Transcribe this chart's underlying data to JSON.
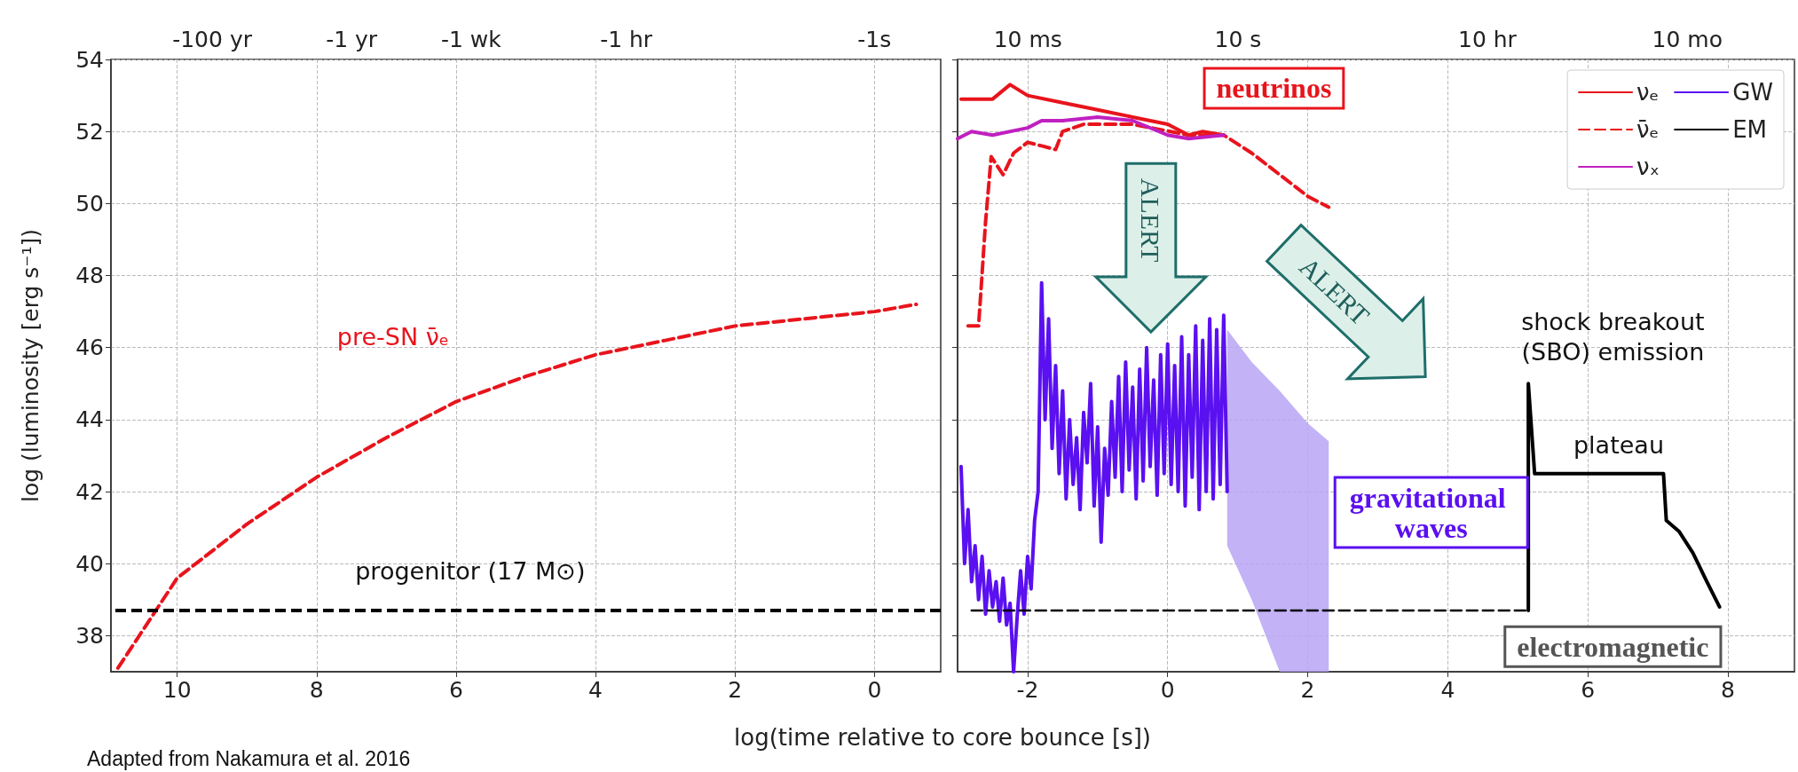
{
  "chart_data": [
    {
      "type": "line",
      "ylabel": "log (luminosity [erg s⁻¹])",
      "xlabel": "log(time relative to core bounce [s])",
      "xlim": [
        10.95,
        -0.95
      ],
      "xticks": [
        10,
        8,
        6,
        4,
        2,
        0
      ],
      "ylim": [
        37,
        54
      ],
      "yticks": [
        38,
        40,
        42,
        44,
        46,
        48,
        50,
        52,
        54
      ],
      "grid": true,
      "series": [
        {
          "color": "#e8141c",
          "line_style": "dashed",
          "x": [
            10.85,
            10,
            9,
            8,
            7,
            6,
            5,
            4,
            3,
            2,
            1,
            0,
            -0.6
          ],
          "values": [
            37.1,
            39.6,
            41.1,
            42.4,
            43.5,
            44.5,
            45.2,
            45.8,
            46.2,
            46.6,
            46.8,
            47.0,
            47.2
          ]
        }
      ],
      "ref_lines": [
        {
          "axis": "y",
          "value": 38.7,
          "color": "#000000",
          "line_style": "dashed"
        }
      ],
      "annotations": [
        "-100 yr",
        "-1 yr",
        "-1 wk",
        "-1 hr",
        "-1s",
        "pre-SN ν̄ₑ",
        "progenitor (17 M⊙)",
        "Adapted from Nakamura et al. 2016"
      ]
    },
    {
      "type": "line",
      "xlim": [
        -3,
        8.95
      ],
      "xticks": [
        -2,
        0,
        2,
        4,
        6,
        8
      ],
      "ylim": [
        37,
        54
      ],
      "yticks": [
        38,
        40,
        42,
        44,
        46,
        48,
        50,
        52,
        54
      ],
      "grid": true,
      "tick_labels": "x",
      "legend": "top right",
      "series": [
        {
          "name": "νₑ",
          "color": "#e8141c",
          "line_style": "solid",
          "x": [
            -2.95,
            -2.5,
            -2.25,
            -2.0,
            -1.5,
            -1.0,
            -0.5,
            0,
            0.3,
            0.5,
            0.8
          ],
          "values": [
            52.9,
            52.9,
            53.3,
            53.0,
            52.8,
            52.6,
            52.4,
            52.2,
            51.9,
            52.0,
            51.9
          ]
        },
        {
          "name": "ν̄ₑ",
          "color": "#e8141c",
          "line_style": "dashed",
          "x": [
            -2.85,
            -2.7,
            -2.6,
            -2.52,
            -2.35,
            -2.2,
            -2.0,
            -1.8,
            -1.6,
            -1.5,
            -1.2,
            -0.5,
            0.3,
            0.8,
            1.2,
            1.6,
            2.0,
            2.3
          ],
          "values": [
            46.6,
            46.6,
            49.5,
            51.3,
            50.8,
            51.4,
            51.7,
            51.6,
            51.5,
            52.0,
            52.2,
            52.2,
            51.9,
            51.9,
            51.4,
            50.8,
            50.2,
            49.9
          ]
        },
        {
          "name": "νₓ",
          "color": "#c020c0",
          "line_style": "solid",
          "x": [
            -3,
            -2.8,
            -2.5,
            -2.0,
            -1.8,
            -1.5,
            -1.0,
            -0.5,
            0,
            0.3,
            0.8
          ],
          "values": [
            51.8,
            52.0,
            51.9,
            52.1,
            52.3,
            52.3,
            52.4,
            52.3,
            51.9,
            51.8,
            51.9
          ]
        },
        {
          "name": "GW",
          "color": "#5a10f0",
          "line_style": "solid",
          "x": [
            -2.95,
            -2.9,
            -2.85,
            -2.8,
            -2.75,
            -2.7,
            -2.65,
            -2.6,
            -2.55,
            -2.5,
            -2.45,
            -2.4,
            -2.35,
            -2.3,
            -2.25,
            -2.2,
            -2.15,
            -2.1,
            -2.05,
            -2.0,
            -1.95,
            -1.9,
            -1.85,
            -1.8,
            -1.75,
            -1.7,
            -1.65,
            -1.6,
            -1.55,
            -1.5,
            -1.45,
            -1.4,
            -1.35,
            -1.3,
            -1.25,
            -1.2,
            -1.15,
            -1.1,
            -1.05,
            -1.0,
            -0.95,
            -0.9,
            -0.85,
            -0.8,
            -0.75,
            -0.7,
            -0.65,
            -0.6,
            -0.55,
            -0.5,
            -0.45,
            -0.4,
            -0.35,
            -0.3,
            -0.25,
            -0.2,
            -0.15,
            -0.1,
            -0.05,
            0,
            0.05,
            0.1,
            0.15,
            0.2,
            0.25,
            0.3,
            0.35,
            0.4,
            0.45,
            0.5,
            0.55,
            0.6,
            0.65,
            0.7,
            0.75,
            0.8,
            0.85
          ],
          "values": [
            42.7,
            40.0,
            41.5,
            39.5,
            40.5,
            39.0,
            40.2,
            38.6,
            39.8,
            38.8,
            39.5,
            38.4,
            39.6,
            38.3,
            38.9,
            37.0,
            38.5,
            39.8,
            38.6,
            40.2,
            39.3,
            41.2,
            42.0,
            47.8,
            44.0,
            46.8,
            43.2,
            45.5,
            42.5,
            44.8,
            41.8,
            44.0,
            42.2,
            43.5,
            41.5,
            44.2,
            42.8,
            45.0,
            41.6,
            43.8,
            40.6,
            43.2,
            41.9,
            44.5,
            42.4,
            45.2,
            42.0,
            45.6,
            42.6,
            44.9,
            41.8,
            45.4,
            42.3,
            46.0,
            42.7,
            45.1,
            41.9,
            45.8,
            42.5,
            46.1,
            42.2,
            45.5,
            42.0,
            46.3,
            41.6,
            45.8,
            42.4,
            46.6,
            41.5,
            46.2,
            42.0,
            46.8,
            41.8,
            46.5,
            42.2,
            46.9,
            42.0
          ]
        },
        {
          "color": "#b8a4f4",
          "x": [
            0.85,
            1.2,
            1.6,
            2.0,
            2.3
          ],
          "values": [
            null,
            null,
            null,
            null,
            null
          ],
          "lower": [
            40.5,
            39.0,
            37.0,
            37.0,
            37.0
          ],
          "upper": [
            46.5,
            45.6,
            44.8,
            43.9,
            43.4
          ]
        },
        {
          "name": "EM",
          "color": "#000000",
          "line_style": "solid",
          "x": [
            5.15,
            5.15,
            5.24,
            7.08,
            7.12,
            7.3,
            7.5,
            7.7,
            7.88
          ],
          "values": [
            38.7,
            45.0,
            42.5,
            42.5,
            41.2,
            40.9,
            40.3,
            39.5,
            38.8
          ]
        },
        {
          "color": "#000000",
          "line_style": "dashed",
          "x": [
            -2.8,
            5.15
          ],
          "values": [
            38.7,
            38.7
          ]
        }
      ],
      "annotations": [
        "10 ms",
        "10 s",
        "10 hr",
        "10 mo",
        "neutrinos",
        "gravitational waves",
        "electromagnetic",
        "shock breakout\n(SBO) emission",
        "plateau",
        "ALERT",
        "ALERT"
      ]
    }
  ]
}
